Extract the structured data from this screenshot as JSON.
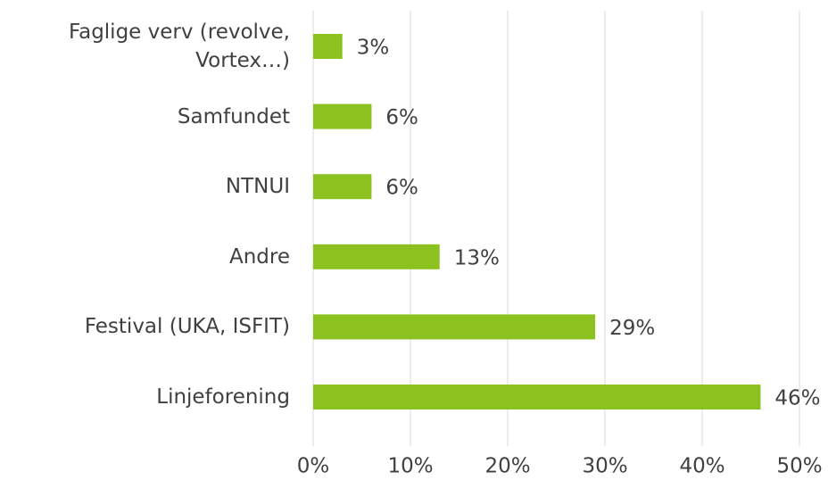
{
  "chart_data": {
    "type": "bar",
    "orientation": "horizontal",
    "categories": [
      "Faglige verv (revolve, Vortex…)",
      "Samfundet",
      "NTNUI",
      "Andre",
      "Festival (UKA, ISFIT)",
      "Linjeforening"
    ],
    "values": [
      3,
      6,
      6,
      13,
      29,
      46
    ],
    "value_labels": [
      "3%",
      "6%",
      "6%",
      "13%",
      "29%",
      "46%"
    ],
    "color": "#8cc21f",
    "xlim": [
      0,
      50
    ],
    "xticks": [
      {
        "value": 0,
        "label": "0%"
      },
      {
        "value": 10,
        "label": "10%"
      },
      {
        "value": 20,
        "label": "20%"
      },
      {
        "value": 30,
        "label": "30%"
      },
      {
        "value": 40,
        "label": "40%"
      },
      {
        "value": 50,
        "label": "50%"
      }
    ],
    "grid": true
  }
}
